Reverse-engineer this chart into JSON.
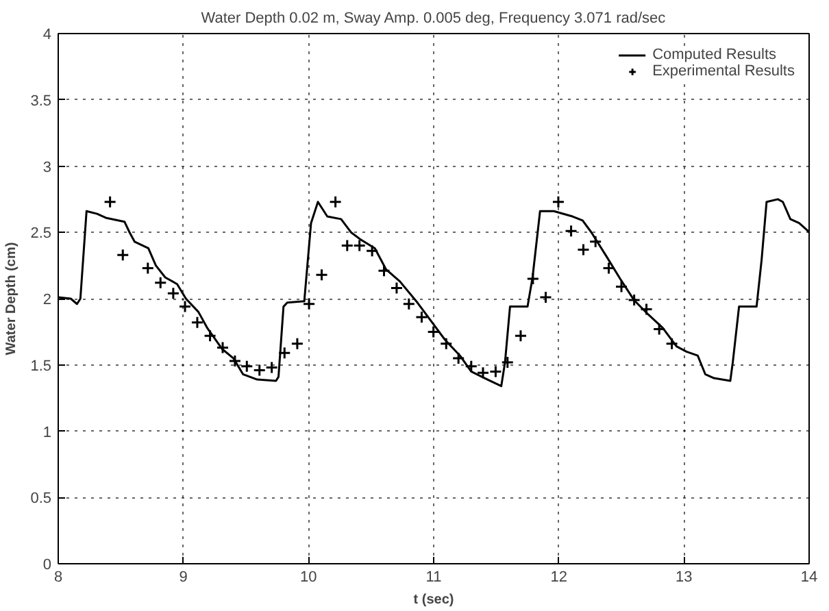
{
  "chart_data": {
    "type": "line",
    "title": "Water Depth 0.02 m, Sway Amp. 0.005 deg, Frequency 3.071 rad/sec",
    "xlabel": "t (sec)",
    "ylabel": "Water Depth (cm)",
    "xlim": [
      8,
      14
    ],
    "xticks": [
      8,
      9,
      10,
      11,
      12,
      13,
      14
    ],
    "ylim": [
      0,
      4
    ],
    "yticks": [
      0,
      0.5,
      1,
      1.5,
      2,
      2.5,
      3,
      3.5,
      4
    ],
    "grid": true,
    "legend": "top right",
    "series": [
      {
        "name": "Computed Results",
        "marker": "none",
        "color": "#000000",
        "x": [
          8.0,
          8.1,
          8.15,
          8.177,
          8.226,
          8.31,
          8.38,
          8.53,
          8.57,
          8.61,
          8.72,
          8.78,
          8.855,
          8.95,
          9.02,
          9.12,
          9.19,
          9.31,
          9.4,
          9.476,
          9.59,
          9.74,
          9.76,
          9.8,
          9.83,
          9.966,
          10.02,
          10.075,
          10.15,
          10.26,
          10.34,
          10.41,
          10.53,
          10.62,
          10.73,
          10.87,
          10.98,
          11.09,
          11.21,
          11.3,
          11.43,
          11.54,
          11.57,
          11.61,
          11.75,
          11.79,
          11.85,
          11.96,
          12.11,
          12.19,
          12.26,
          12.38,
          12.49,
          12.6,
          12.715,
          12.83,
          12.94,
          13.02,
          13.11,
          13.17,
          13.24,
          13.37,
          13.39,
          13.44,
          13.58,
          13.62,
          13.66,
          13.75,
          13.79,
          13.85,
          13.92,
          13.98,
          14.0
        ],
        "values": [
          2.01,
          2.0,
          1.96,
          2.0,
          2.66,
          2.64,
          2.61,
          2.58,
          2.5,
          2.43,
          2.38,
          2.25,
          2.16,
          2.11,
          2.0,
          1.9,
          1.78,
          1.62,
          1.55,
          1.43,
          1.39,
          1.38,
          1.41,
          1.94,
          1.97,
          1.98,
          2.57,
          2.73,
          2.62,
          2.6,
          2.5,
          2.45,
          2.38,
          2.22,
          2.13,
          1.97,
          1.83,
          1.69,
          1.57,
          1.45,
          1.39,
          1.34,
          1.52,
          1.94,
          1.94,
          2.16,
          2.66,
          2.66,
          2.62,
          2.59,
          2.5,
          2.32,
          2.15,
          1.99,
          1.88,
          1.78,
          1.64,
          1.6,
          1.57,
          1.43,
          1.4,
          1.38,
          1.52,
          1.94,
          1.94,
          2.29,
          2.73,
          2.75,
          2.73,
          2.6,
          2.57,
          2.52,
          2.5
        ]
      },
      {
        "name": "Experimental Results",
        "type": "scatter",
        "marker": "cross",
        "color": "#000000",
        "x": [
          8.414,
          8.516,
          8.716,
          8.817,
          8.919,
          9.013,
          9.111,
          9.213,
          9.314,
          9.412,
          9.507,
          9.608,
          9.706,
          9.808,
          9.91,
          10.004,
          10.105,
          10.215,
          10.309,
          10.407,
          10.508,
          10.603,
          10.704,
          10.802,
          10.904,
          10.998,
          11.1,
          11.198,
          11.3,
          11.394,
          11.495,
          11.59,
          11.695,
          11.793,
          11.895,
          11.996,
          12.098,
          12.196,
          12.293,
          12.399,
          12.5,
          12.602,
          12.7,
          12.802,
          12.903
        ],
        "values": [
          2.73,
          2.33,
          2.23,
          2.12,
          2.04,
          1.94,
          1.82,
          1.72,
          1.63,
          1.53,
          1.49,
          1.46,
          1.48,
          1.59,
          1.66,
          1.96,
          2.18,
          2.73,
          2.4,
          2.4,
          2.36,
          2.21,
          2.08,
          1.96,
          1.86,
          1.75,
          1.66,
          1.55,
          1.49,
          1.44,
          1.45,
          1.52,
          1.72,
          2.15,
          2.01,
          2.73,
          2.51,
          2.37,
          2.43,
          2.23,
          2.09,
          1.99,
          1.92,
          1.77,
          1.66
        ]
      }
    ]
  }
}
